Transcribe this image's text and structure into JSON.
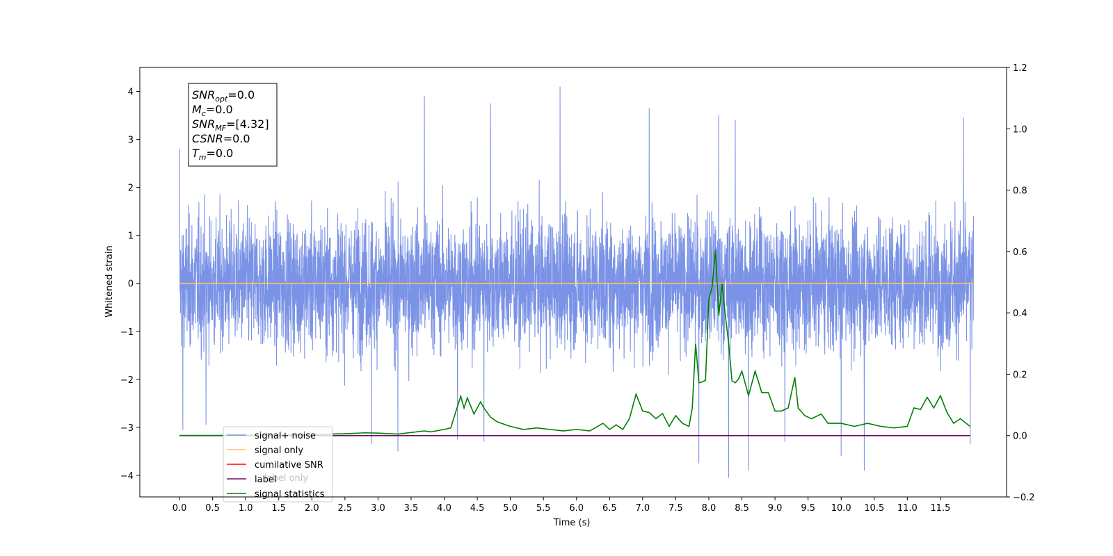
{
  "chart_data": {
    "type": "line",
    "xlabel": "Time (s)",
    "ylabel": "Whitened strain",
    "xlim": [
      -0.6,
      12.5
    ],
    "ylim": [
      -4.45,
      4.5
    ],
    "y2lim": [
      -0.2,
      1.2
    ],
    "x_ticks": [
      0.0,
      0.5,
      1.0,
      1.5,
      2.0,
      2.5,
      3.0,
      3.5,
      4.0,
      4.5,
      5.0,
      5.5,
      6.0,
      6.5,
      7.0,
      7.5,
      8.0,
      8.5,
      9.0,
      9.5,
      10.0,
      10.5,
      11.0,
      11.5
    ],
    "x_tick_labels": [
      "0.0",
      "0.5",
      "1.0",
      "1.5",
      "2.0",
      "2.5",
      "3.0",
      "3.5",
      "4.0",
      "4.5",
      "5.0",
      "5.5",
      "6.0",
      "6.5",
      "7.0",
      "7.5",
      "8.0",
      "8.5",
      "9.0",
      "9.5",
      "10.0",
      "10.5",
      "11.0",
      "11.5"
    ],
    "y_ticks": [
      4,
      3,
      2,
      1,
      0,
      -1,
      -2,
      -3,
      -4
    ],
    "y_tick_labels": [
      "4",
      "3",
      "2",
      "1",
      "0",
      "−1",
      "−2",
      "−3",
      "−4"
    ],
    "y2_ticks": [
      1.2,
      1.0,
      0.8,
      0.6,
      0.4,
      0.2,
      0.0,
      -0.2
    ],
    "y2_tick_labels": [
      "1.2",
      "1.0",
      "0.8",
      "0.6",
      "0.4",
      "0.2",
      "0.0",
      "−0.2"
    ],
    "grid": false,
    "legend_position": "bottom-left",
    "legend": [
      {
        "label": "signal+ noise",
        "color": "#7b93e6"
      },
      {
        "label": "signal only",
        "color": "#ffc266"
      },
      {
        "label": "cumilative SNR",
        "color": "#ff0000"
      },
      {
        "label": "label",
        "color": "#6a0d6a"
      },
      {
        "label": "signal statistics",
        "color": "#008000"
      }
    ],
    "hidden_legend_text": [
      "label only"
    ],
    "noise_series": {
      "name": "signal+ noise",
      "color": "#7b93e6",
      "x_start": 0.0,
      "x_end": 12.0,
      "typical_range": [
        -2.2,
        2.6
      ],
      "spikes": [
        {
          "x": 0.0,
          "y": 2.8
        },
        {
          "x": 0.05,
          "y": -3.05
        },
        {
          "x": 0.4,
          "y": -2.95
        },
        {
          "x": 3.7,
          "y": 3.9
        },
        {
          "x": 3.3,
          "y": -3.5
        },
        {
          "x": 2.9,
          "y": -3.35
        },
        {
          "x": 4.7,
          "y": 3.75
        },
        {
          "x": 4.2,
          "y": -3.25
        },
        {
          "x": 4.6,
          "y": -3.3
        },
        {
          "x": 5.75,
          "y": 4.1
        },
        {
          "x": 7.1,
          "y": 3.65
        },
        {
          "x": 7.85,
          "y": -3.75
        },
        {
          "x": 8.15,
          "y": 3.5
        },
        {
          "x": 8.3,
          "y": -4.05
        },
        {
          "x": 8.6,
          "y": -3.9
        },
        {
          "x": 8.4,
          "y": 3.4
        },
        {
          "x": 9.15,
          "y": -3.3
        },
        {
          "x": 10.0,
          "y": -3.6
        },
        {
          "x": 10.35,
          "y": -3.9
        },
        {
          "x": 11.85,
          "y": 3.45
        },
        {
          "x": 11.95,
          "y": -3.35
        }
      ]
    },
    "signal_only": {
      "name": "signal only",
      "color": "#ffc266",
      "x": [
        0.0,
        12.0
      ],
      "y": [
        0.0,
        0.0
      ]
    },
    "label_series": {
      "name": "label",
      "color": "#6a0d6a",
      "x": [
        0.0,
        11.95
      ],
      "y2": [
        0.0,
        0.0
      ]
    },
    "signal_statistics": {
      "name": "signal statistics",
      "color": "#008000",
      "axis": "right",
      "x": [
        0.0,
        0.5,
        1.0,
        1.5,
        2.0,
        2.5,
        2.8,
        3.0,
        3.3,
        3.5,
        3.7,
        3.8,
        4.0,
        4.1,
        4.15,
        4.25,
        4.3,
        4.35,
        4.45,
        4.55,
        4.6,
        4.7,
        4.8,
        5.0,
        5.2,
        5.4,
        5.6,
        5.8,
        6.0,
        6.2,
        6.4,
        6.5,
        6.6,
        6.7,
        6.8,
        6.9,
        7.0,
        7.1,
        7.2,
        7.3,
        7.4,
        7.5,
        7.6,
        7.7,
        7.75,
        7.8,
        7.85,
        7.9,
        7.95,
        8.0,
        8.05,
        8.1,
        8.15,
        8.2,
        8.25,
        8.3,
        8.35,
        8.4,
        8.45,
        8.5,
        8.6,
        8.7,
        8.8,
        8.9,
        9.0,
        9.1,
        9.2,
        9.3,
        9.35,
        9.45,
        9.55,
        9.7,
        9.8,
        10.0,
        10.2,
        10.4,
        10.6,
        10.8,
        11.0,
        11.1,
        11.2,
        11.3,
        11.4,
        11.5,
        11.6,
        11.7,
        11.8,
        11.95
      ],
      "y2": [
        0.0,
        0.0,
        0.001,
        0.002,
        0.004,
        0.006,
        0.009,
        0.008,
        0.005,
        0.01,
        0.015,
        0.012,
        0.02,
        0.025,
        0.06,
        0.128,
        0.09,
        0.123,
        0.07,
        0.11,
        0.09,
        0.06,
        0.045,
        0.03,
        0.02,
        0.025,
        0.02,
        0.015,
        0.02,
        0.015,
        0.04,
        0.02,
        0.035,
        0.02,
        0.055,
        0.135,
        0.08,
        0.075,
        0.055,
        0.072,
        0.03,
        0.065,
        0.04,
        0.03,
        0.09,
        0.3,
        0.172,
        0.175,
        0.18,
        0.445,
        0.485,
        0.605,
        0.39,
        0.495,
        0.39,
        0.3,
        0.178,
        0.172,
        0.185,
        0.21,
        0.13,
        0.21,
        0.14,
        0.14,
        0.08,
        0.08,
        0.09,
        0.19,
        0.09,
        0.065,
        0.055,
        0.07,
        0.04,
        0.04,
        0.03,
        0.04,
        0.03,
        0.025,
        0.03,
        0.09,
        0.085,
        0.125,
        0.09,
        0.13,
        0.075,
        0.04,
        0.055,
        0.03
      ]
    },
    "info_box": {
      "lines": [
        {
          "base": "SNR",
          "sub": "opt",
          "value": "=0.0"
        },
        {
          "base": "M",
          "sub": "c",
          "value": "=0.0"
        },
        {
          "base": "SNR",
          "sub": "MF",
          "value": "=[4.32]"
        },
        {
          "base": "CSNR",
          "sub": "",
          "value": "=0.0"
        },
        {
          "base": "T",
          "sub": "m",
          "value": "=0.0"
        }
      ]
    }
  }
}
